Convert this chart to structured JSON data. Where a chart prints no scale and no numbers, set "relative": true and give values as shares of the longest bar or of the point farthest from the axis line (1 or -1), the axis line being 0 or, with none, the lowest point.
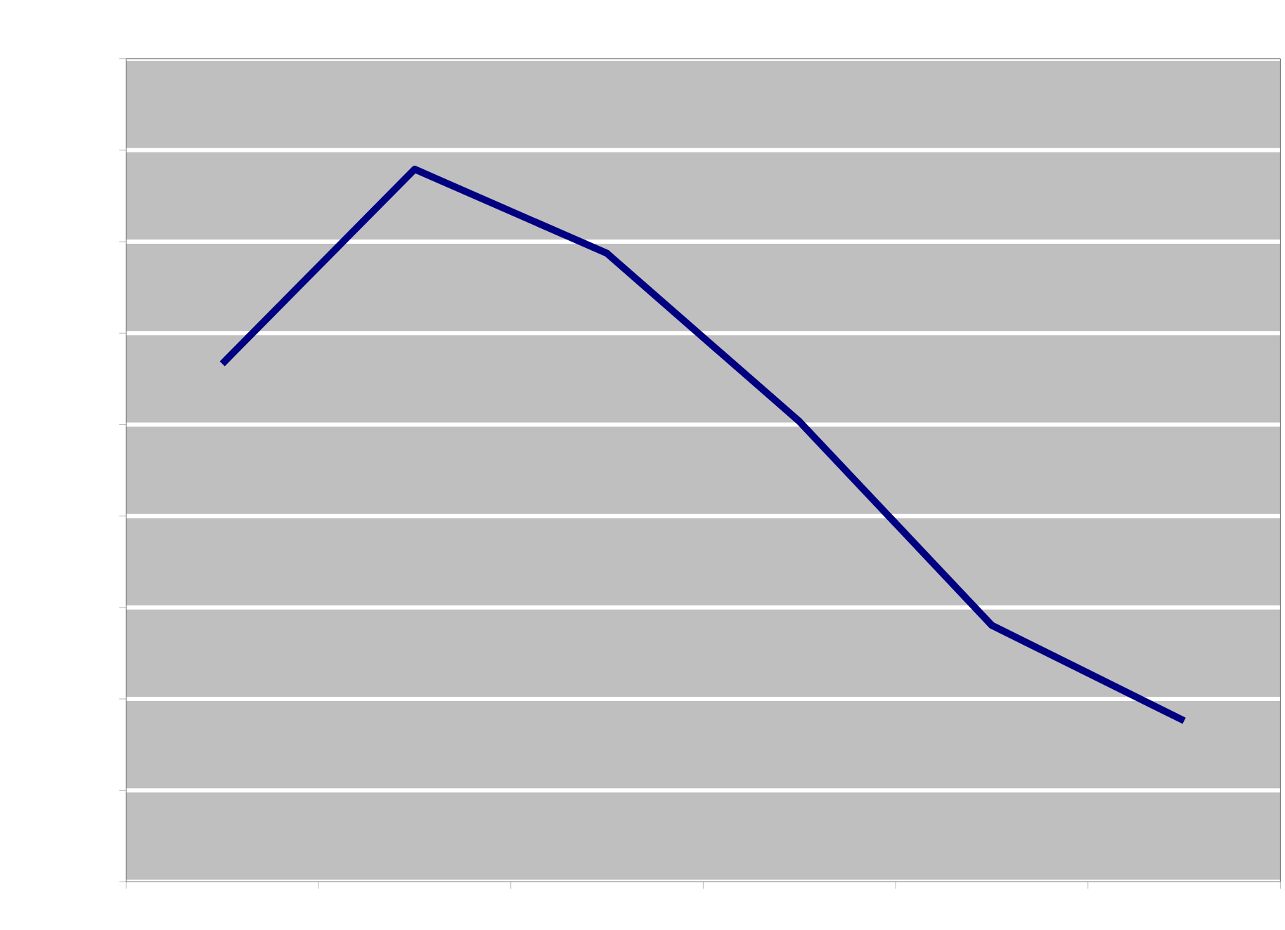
{
  "chart_data": {
    "type": "line",
    "relative": true,
    "grid": "y",
    "categories": [
      null,
      null,
      null,
      null,
      null,
      null
    ],
    "series": [
      {
        "color": "#000080",
        "values": [
          0.727,
          1,
          0.882,
          0.646,
          0.36,
          0.226
        ]
      }
    ]
  }
}
